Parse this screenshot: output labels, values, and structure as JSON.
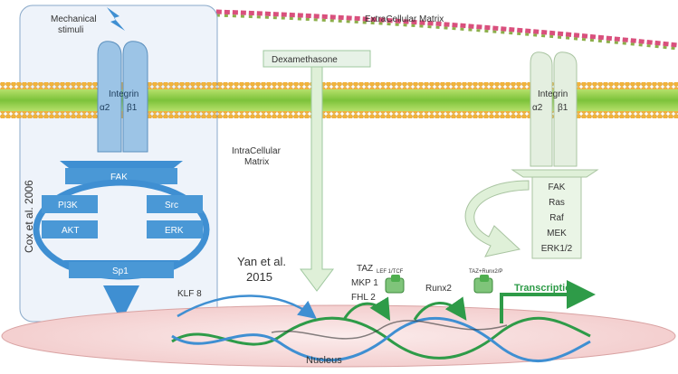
{
  "labels": {
    "mechanical_stimuli_line1": "Mechanical",
    "mechanical_stimuli_line2": "stimuli",
    "ecm": "ExtraCellular Matrix",
    "icm_line1": "IntraCellular",
    "icm_line2": "Matrix",
    "dexamethasone": "Dexamethasone",
    "nucleus": "Nucleus",
    "cox": "Cox et al. 2006",
    "yan_line1": "Yan et al.",
    "yan_line2": "2015",
    "klf8": "KLF 8",
    "taz": "TAZ",
    "mkp1": "MKP 1",
    "fhl2": "FHL 2",
    "lef": "LEF 1/TCF",
    "runx2": "Runx2",
    "taz_runx2": "TAZ+Runx2/P",
    "transcription": "Transcription"
  },
  "left_integrin": {
    "title": "Integrin",
    "alpha": "α2",
    "beta": "β1"
  },
  "right_integrin": {
    "title": "Integrin",
    "alpha": "α2",
    "beta": "β1"
  },
  "left_pathway": {
    "fak": "FAK",
    "pi3k": "PI3K",
    "akt": "AKT",
    "src": "Src",
    "erk": "ERK",
    "sp1": "Sp1"
  },
  "right_pathway": [
    "FAK",
    "Ras",
    "Raf",
    "MEK",
    "ERK1/2"
  ],
  "colors": {
    "blue_dark": "#3f8fd2",
    "blue_mid": "#5aa2dc",
    "panel_bg": "#eef3fa",
    "panel_border": "#8aa9c9",
    "membrane_green": "#8ccf3f",
    "membrane_head": "#f2b33a",
    "pale_green": "#d9ecd5",
    "arrow_green": "#2e9b48",
    "ecm_pink": "#d94f7a",
    "nucleus_fill": "#f7dede"
  }
}
